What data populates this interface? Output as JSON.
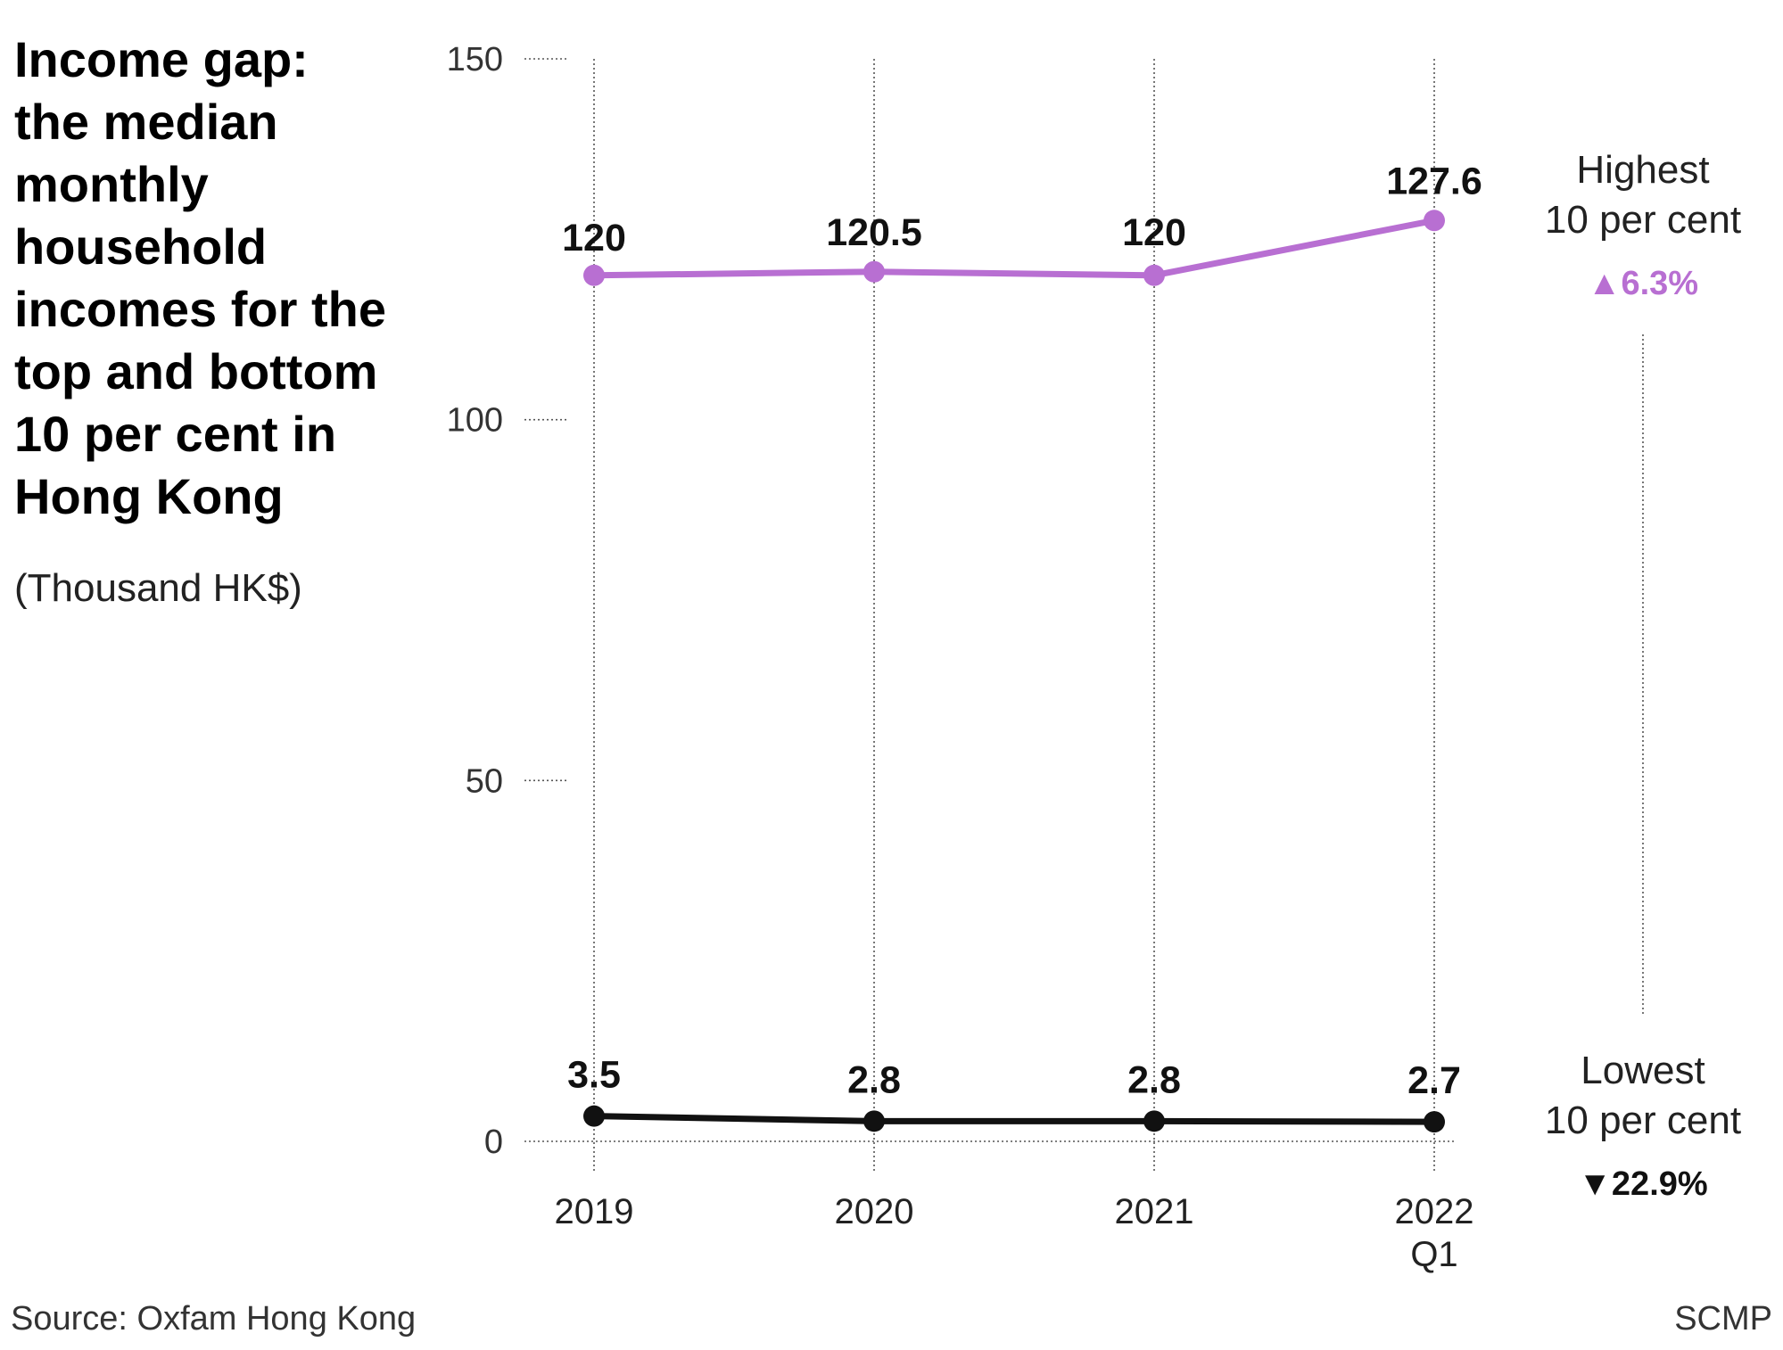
{
  "title": "Income gap: the median monthly household incomes for the top and bottom 10 per cent in Hong Kong",
  "subtitle": "(Thousand HK$)",
  "source": "Source: Oxfam Hong Kong",
  "credit": "SCMP",
  "colors": {
    "highest": "#b86fd2",
    "lowest": "#111111",
    "grid": "#555555"
  },
  "chart_data": {
    "type": "line",
    "categories": [
      "2019",
      "2020",
      "2021",
      "2022"
    ],
    "category_sublabels": [
      "",
      "",
      "",
      "Q1"
    ],
    "ylim": [
      0,
      150
    ],
    "yticks": [
      0,
      50,
      100,
      150
    ],
    "grid": true,
    "series": [
      {
        "key": "highest",
        "name_lines": [
          "Highest",
          "10 per cent"
        ],
        "values": [
          120,
          120.5,
          120,
          127.6
        ],
        "labels": [
          "120",
          "120.5",
          "120",
          "127.6"
        ],
        "change": "▲6.3%"
      },
      {
        "key": "lowest",
        "name_lines": [
          "Lowest",
          "10 per cent"
        ],
        "values": [
          3.5,
          2.8,
          2.8,
          2.7
        ],
        "labels": [
          "3.5",
          "2.8",
          "2.8",
          "2.7"
        ],
        "change": "▼22.9%"
      }
    ]
  }
}
